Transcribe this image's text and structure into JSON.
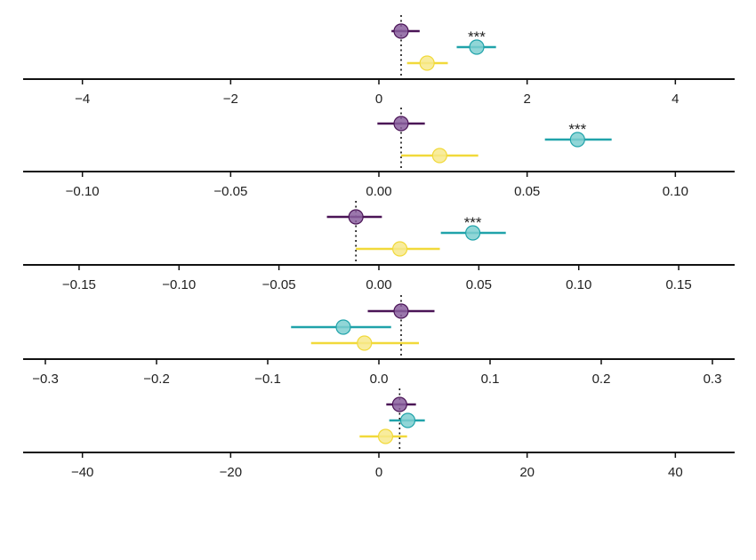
{
  "chart_data": [
    {
      "type": "forest",
      "xlim": [
        -4.8,
        4.8
      ],
      "ticks": [
        -4,
        -2,
        0,
        2,
        4
      ],
      "tick_labels": [
        "−4",
        "−2",
        "0",
        "2",
        "4"
      ],
      "reference": 0.3,
      "points": [
        {
          "estimate": 0.3,
          "lower": 0.17,
          "upper": 0.55,
          "color": "#8a5f9e",
          "line_color": "#4a1456",
          "sig": ""
        },
        {
          "estimate": 1.32,
          "lower": 1.05,
          "upper": 1.58,
          "color": "#7ecfd0",
          "line_color": "#20a3aa",
          "sig": "***"
        },
        {
          "estimate": 0.65,
          "lower": 0.38,
          "upper": 0.93,
          "color": "#f7e98c",
          "line_color": "#f1d93a",
          "sig": ""
        }
      ]
    },
    {
      "type": "forest",
      "xlim": [
        -0.12,
        0.12
      ],
      "ticks": [
        -0.1,
        -0.05,
        0.0,
        0.05,
        0.1
      ],
      "tick_labels": [
        "−0.10",
        "−0.05",
        "0.00",
        "0.05",
        "0.10"
      ],
      "reference": 0.0075,
      "points": [
        {
          "estimate": 0.0075,
          "lower": -0.0005,
          "upper": 0.0155,
          "color": "#8a5f9e",
          "line_color": "#4a1456",
          "sig": ""
        },
        {
          "estimate": 0.067,
          "lower": 0.056,
          "upper": 0.0785,
          "color": "#7ecfd0",
          "line_color": "#20a3aa",
          "sig": "***"
        },
        {
          "estimate": 0.0205,
          "lower": 0.0075,
          "upper": 0.0335,
          "color": "#f7e98c",
          "line_color": "#f1d93a",
          "sig": ""
        }
      ]
    },
    {
      "type": "forest",
      "xlim": [
        -0.178,
        0.178
      ],
      "ticks": [
        -0.15,
        -0.1,
        -0.05,
        0.0,
        0.05,
        0.1,
        0.15
      ],
      "tick_labels": [
        "−0.15",
        "−0.10",
        "−0.05",
        "0.00",
        "0.05",
        "0.10",
        "0.15"
      ],
      "reference": -0.0115,
      "points": [
        {
          "estimate": -0.0115,
          "lower": -0.026,
          "upper": 0.0015,
          "color": "#8a5f9e",
          "line_color": "#4a1456",
          "sig": ""
        },
        {
          "estimate": 0.047,
          "lower": 0.031,
          "upper": 0.0635,
          "color": "#7ecfd0",
          "line_color": "#20a3aa",
          "sig": "***"
        },
        {
          "estimate": 0.0105,
          "lower": -0.0115,
          "upper": 0.0305,
          "color": "#f7e98c",
          "line_color": "#f1d93a",
          "sig": ""
        }
      ]
    },
    {
      "type": "forest",
      "xlim": [
        -0.32,
        0.32
      ],
      "ticks": [
        -0.3,
        -0.2,
        -0.1,
        0.0,
        0.1,
        0.2,
        0.3
      ],
      "tick_labels": [
        "−0.3",
        "−0.2",
        "−0.1",
        "0.0",
        "0.1",
        "0.2",
        "0.3"
      ],
      "reference": 0.02,
      "points": [
        {
          "estimate": 0.02,
          "lower": -0.01,
          "upper": 0.05,
          "color": "#8a5f9e",
          "line_color": "#4a1456",
          "sig": ""
        },
        {
          "estimate": -0.032,
          "lower": -0.079,
          "upper": 0.011,
          "color": "#7ecfd0",
          "line_color": "#20a3aa",
          "sig": ""
        },
        {
          "estimate": -0.013,
          "lower": -0.061,
          "upper": 0.036,
          "color": "#f7e98c",
          "line_color": "#f1d93a",
          "sig": ""
        }
      ]
    },
    {
      "type": "forest",
      "xlim": [
        -48,
        48
      ],
      "ticks": [
        -40,
        -20,
        0,
        20,
        40
      ],
      "tick_labels": [
        "−40",
        "−20",
        "0",
        "20",
        "40"
      ],
      "reference": 2.8,
      "points": [
        {
          "estimate": 2.8,
          "lower": 1.0,
          "upper": 5.0,
          "color": "#8a5f9e",
          "line_color": "#4a1456",
          "sig": ""
        },
        {
          "estimate": 3.9,
          "lower": 1.4,
          "upper": 6.2,
          "color": "#7ecfd0",
          "line_color": "#20a3aa",
          "sig": ""
        },
        {
          "estimate": 0.9,
          "lower": -2.6,
          "upper": 3.8,
          "color": "#f7e98c",
          "line_color": "#f1d93a",
          "sig": ""
        }
      ]
    }
  ]
}
